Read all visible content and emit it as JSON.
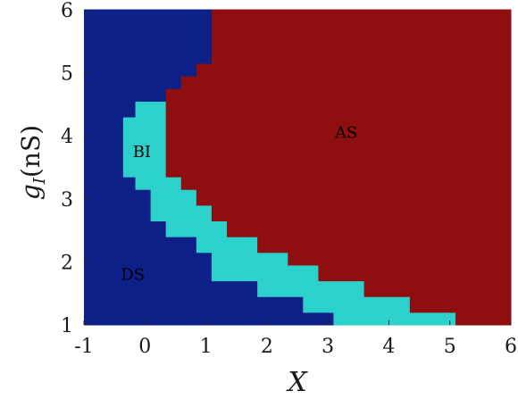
{
  "chart_data": {
    "type": "heatmap",
    "title": "",
    "xlabel": "X",
    "ylabel": {
      "symbol": "g",
      "subscript": "I",
      "unit": "(nS)"
    },
    "xlim": [
      -1,
      6
    ],
    "ylim": [
      1,
      6
    ],
    "xticks": [
      "-1",
      "0",
      "1",
      "2",
      "3",
      "4",
      "5",
      "6"
    ],
    "yticks": [
      "1",
      "2",
      "3",
      "4",
      "5",
      "6"
    ],
    "colors": {
      "DS": "#0c2088",
      "BI": "#2dd1cb",
      "AS": "#8f0e0f"
    },
    "region_labels": [
      {
        "text": "AS",
        "x": 3.3,
        "y": 4.05
      },
      {
        "text": "BI",
        "x": -0.05,
        "y": 3.75
      },
      {
        "text": "DS",
        "x": -0.2,
        "y": 1.8
      }
    ],
    "boundary_rows": [
      {
        "y": [
          1.0,
          1.2
        ],
        "bi_from": 3.1,
        "as_from": 5.1
      },
      {
        "y": [
          1.2,
          1.45
        ],
        "bi_from": 2.6,
        "as_from": 4.35
      },
      {
        "y": [
          1.45,
          1.7
        ],
        "bi_from": 1.85,
        "as_from": 3.6
      },
      {
        "y": [
          1.7,
          1.95
        ],
        "bi_from": 1.1,
        "as_from": 2.85
      },
      {
        "y": [
          1.95,
          2.15
        ],
        "bi_from": 1.1,
        "as_from": 2.35
      },
      {
        "y": [
          2.15,
          2.4
        ],
        "bi_from": 0.85,
        "as_from": 1.85
      },
      {
        "y": [
          2.4,
          2.65
        ],
        "bi_from": 0.35,
        "as_from": 1.35
      },
      {
        "y": [
          2.65,
          2.9
        ],
        "bi_from": 0.1,
        "as_from": 1.1
      },
      {
        "y": [
          2.9,
          3.15
        ],
        "bi_from": 0.1,
        "as_from": 0.85
      },
      {
        "y": [
          3.15,
          3.35
        ],
        "bi_from": -0.15,
        "as_from": 0.6
      },
      {
        "y": [
          3.35,
          4.3
        ],
        "bi_from": -0.35,
        "as_from": 0.35
      },
      {
        "y": [
          4.3,
          4.55
        ],
        "bi_from": -0.15,
        "as_from": 0.35
      },
      {
        "y": [
          4.55,
          4.75
        ],
        "bi_from": 0.35,
        "as_from": 0.35
      },
      {
        "y": [
          4.75,
          4.95
        ],
        "bi_from": 0.6,
        "as_from": 0.6
      },
      {
        "y": [
          4.95,
          5.15
        ],
        "bi_from": 0.85,
        "as_from": 0.85
      },
      {
        "y": [
          5.15,
          6.0
        ],
        "bi_from": 1.1,
        "as_from": 1.1
      }
    ]
  }
}
